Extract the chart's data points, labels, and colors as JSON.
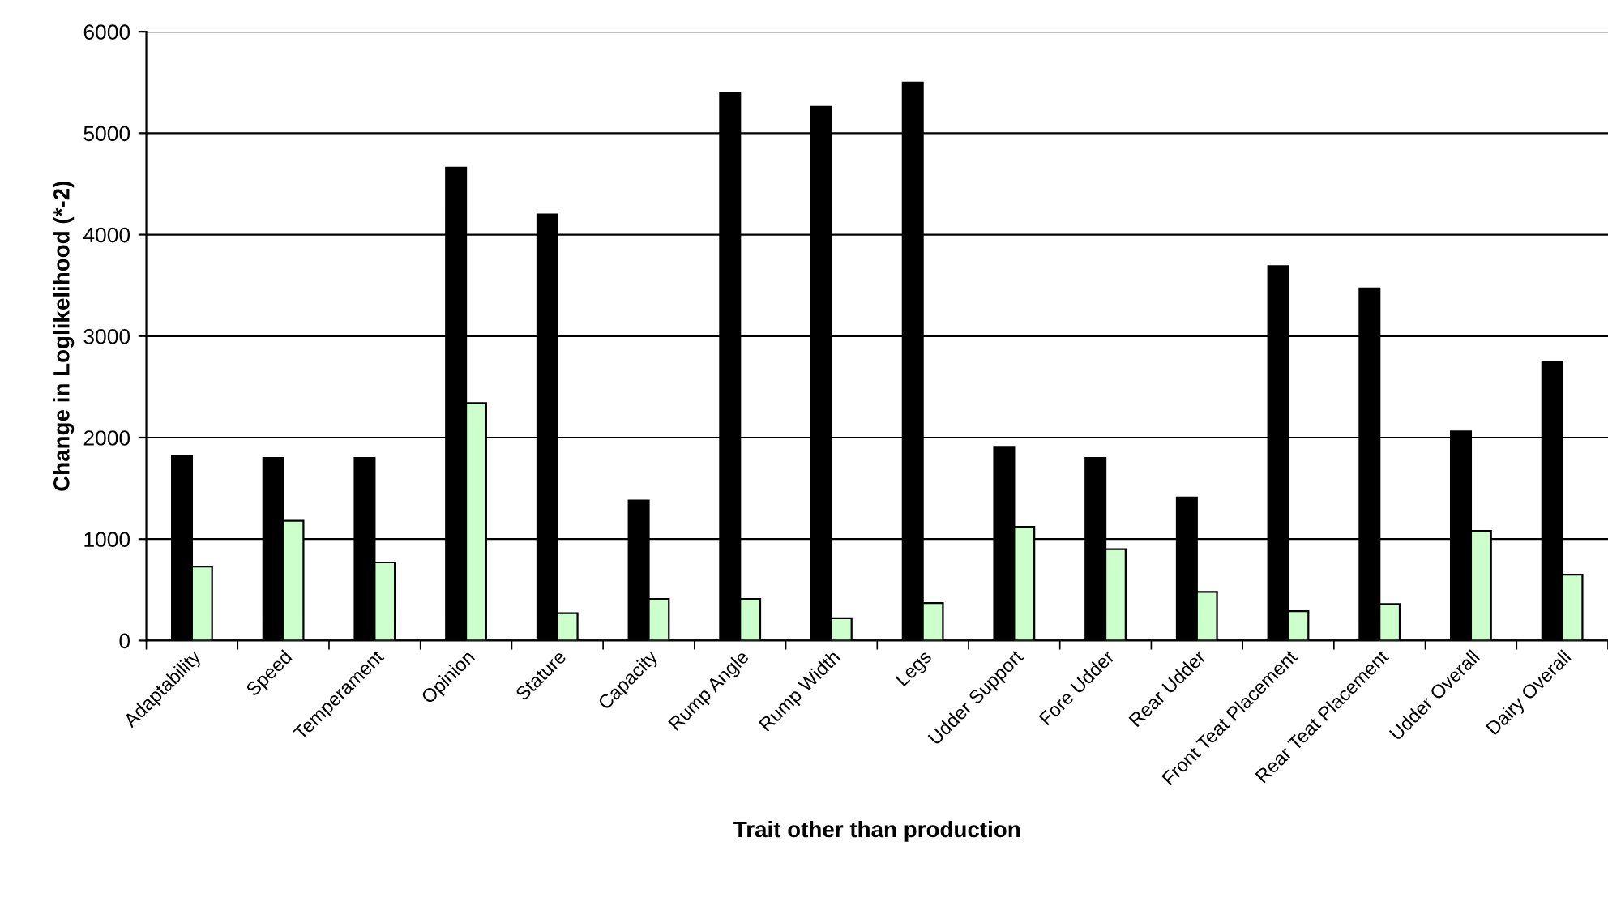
{
  "chart_data": {
    "type": "bar",
    "xlabel": "Trait other than production",
    "ylabel": "Change in Loglikelihood (*-2)",
    "categories": [
      "Adaptability",
      "Speed",
      "Temperament",
      "Opinion",
      "Stature",
      "Capacity",
      "Rump Angle",
      "Rump Width",
      "Legs",
      "Udder Support",
      "Fore Udder",
      "Rear Udder",
      "Front Teat Placement",
      "Rear Teat Placement",
      "Udder Overall",
      "Dairy Overall"
    ],
    "series": [
      {
        "color": "#000000",
        "values": [
          1820,
          1800,
          1800,
          4660,
          4200,
          1380,
          5400,
          5260,
          5500,
          1910,
          1800,
          1410,
          3690,
          3470,
          2060,
          2750
        ]
      },
      {
        "color": "#ccffcc",
        "values": [
          730,
          1180,
          770,
          2340,
          270,
          410,
          410,
          220,
          370,
          1120,
          900,
          480,
          290,
          360,
          1080,
          650
        ]
      }
    ],
    "ylim": [
      0,
      6000
    ],
    "yticks": [
      0,
      1000,
      2000,
      3000,
      4000,
      5000,
      6000
    ],
    "grid": "y",
    "legend": false
  }
}
